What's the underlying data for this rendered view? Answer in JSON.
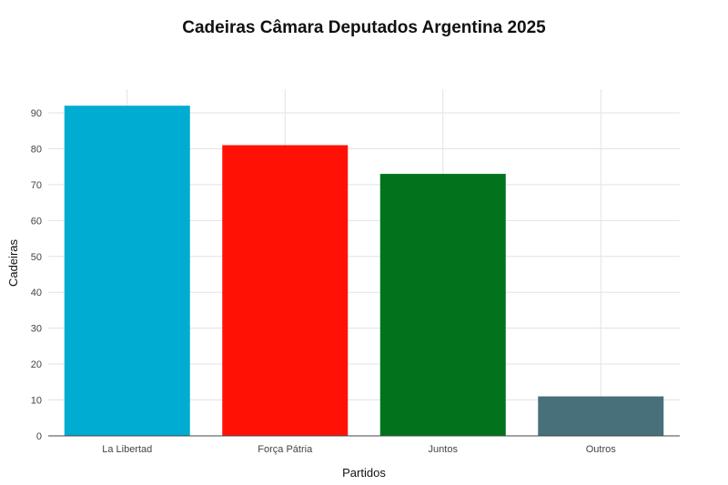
{
  "chart_data": {
    "type": "bar",
    "title": "Cadeiras Câmara Deputados Argentina 2025",
    "xlabel": "Partidos",
    "ylabel": "Cadeiras",
    "categories": [
      "La Libertad",
      "Força Pátria",
      "Juntos",
      "Outros"
    ],
    "values": [
      92,
      81,
      73,
      11
    ],
    "colors": [
      "#00acd1",
      "#ff1205",
      "#00731c",
      "#47707a"
    ],
    "yticks": [
      0,
      10,
      20,
      30,
      40,
      50,
      60,
      70,
      80,
      90
    ],
    "ylim": [
      0,
      97
    ],
    "grid": true,
    "legend": "none"
  }
}
